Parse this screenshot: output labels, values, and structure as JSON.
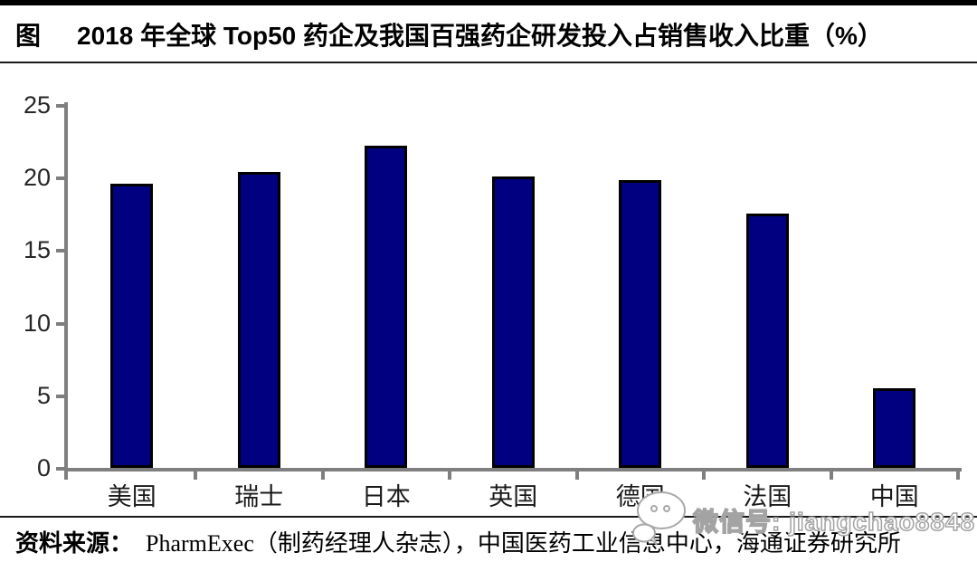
{
  "header": {
    "figure_label": "图",
    "title": "2018 年全球 Top50 药企及我国百强药企研发投入占销售收入比重（%）"
  },
  "chart_data": {
    "type": "bar",
    "title": "2018 年全球 Top50 药企及我国百强药企研发投入占销售收入比重（%）",
    "categories": [
      "美国",
      "瑞士",
      "日本",
      "英国",
      "德国",
      "法国",
      "中国"
    ],
    "values": [
      19.6,
      20.4,
      22.2,
      20.1,
      19.8,
      17.5,
      5.5
    ],
    "unit": "%",
    "xlabel": "",
    "ylabel": "",
    "ylim": [
      0,
      25
    ],
    "yticks": [
      0,
      5,
      10,
      15,
      20,
      25
    ],
    "grid": false,
    "legend": "none",
    "bar_color": "#000080",
    "bar_border_color": "#000000",
    "axis_color": "#7f7f7f"
  },
  "source": {
    "label": "资料来源：",
    "text": "PharmExec（制药经理人杂志），中国医药工业信息中心，海通证券研究所"
  },
  "watermark": {
    "icon": "wechat-icon",
    "text": "微信号: jiangchao8848"
  }
}
